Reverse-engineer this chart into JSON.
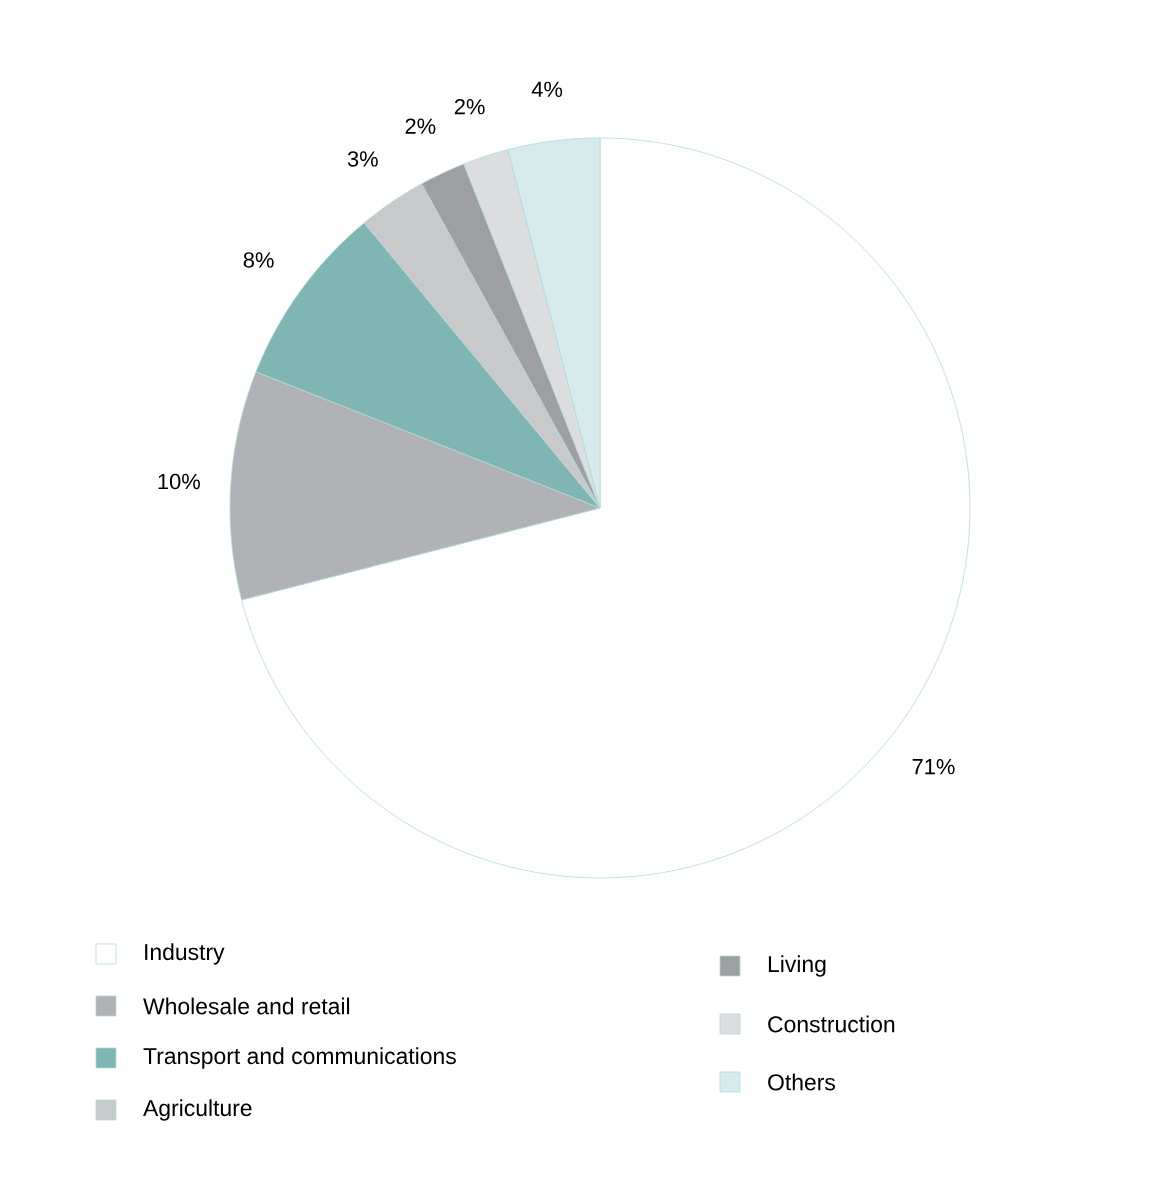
{
  "chart_data": {
    "type": "pie",
    "categories": [
      "Industry",
      "Wholesale and retail",
      "Transport and communications",
      "Agriculture",
      "Living",
      "Construction",
      "Others"
    ],
    "values": [
      71,
      10,
      8,
      3,
      2,
      2,
      4
    ],
    "colors": [
      "#ffffff",
      "#b1b2b5",
      "#7fb5b2",
      "#c8c9cb",
      "#9d9fa2",
      "#dcdddf",
      "#d6ecec"
    ],
    "value_labels": [
      "71%",
      "10%",
      "8%",
      "3%",
      "2%",
      "2%",
      "4%"
    ],
    "legend": "bottom"
  }
}
